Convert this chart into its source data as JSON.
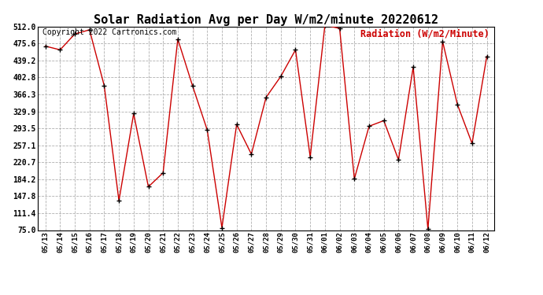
{
  "title": "Solar Radiation Avg per Day W/m2/minute 20220612",
  "copyright_text": "Copyright 2022 Cartronics.com",
  "legend_text": "Radiation (W/m2/Minute)",
  "dates": [
    "05/13",
    "05/14",
    "05/15",
    "05/16",
    "05/17",
    "05/18",
    "05/19",
    "05/20",
    "05/21",
    "05/22",
    "05/23",
    "05/24",
    "05/25",
    "05/26",
    "05/27",
    "05/28",
    "05/29",
    "05/30",
    "05/31",
    "06/01",
    "06/02",
    "06/03",
    "06/04",
    "06/05",
    "06/06",
    "06/07",
    "06/08",
    "06/09",
    "06/10",
    "06/11",
    "06/12"
  ],
  "values": [
    470,
    462,
    496,
    505,
    385,
    138,
    325,
    168,
    198,
    485,
    385,
    290,
    80,
    302,
    238,
    360,
    405,
    462,
    232,
    515,
    508,
    185,
    298,
    310,
    226,
    425,
    77,
    480,
    345,
    261,
    448
  ],
  "ylim": [
    75.0,
    512.0
  ],
  "yticks": [
    75.0,
    111.4,
    147.8,
    184.2,
    220.7,
    257.1,
    293.5,
    329.9,
    366.3,
    402.8,
    439.2,
    475.6,
    512.0
  ],
  "line_color": "#cc0000",
  "marker_color": "#000000",
  "bg_color": "#ffffff",
  "grid_color": "#b0b0b0",
  "title_fontsize": 11,
  "copyright_fontsize": 7,
  "legend_color": "#cc0000",
  "legend_fontsize": 8.5
}
